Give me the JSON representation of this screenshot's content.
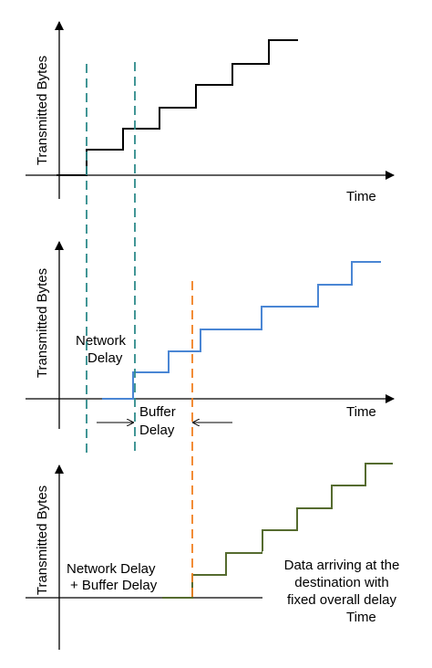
{
  "panels": [
    {
      "ylabel": "Transmitted Bytes",
      "xlabel": "Time",
      "step_color": "#000000"
    },
    {
      "ylabel": "Transmitted Bytes",
      "xlabel": "Time",
      "step_color": "#4a86d4",
      "annotations": {
        "network_delay_1": "Network",
        "network_delay_2": "Delay",
        "buffer_delay_1": "Buffer",
        "buffer_delay_2": "Delay"
      }
    },
    {
      "ylabel": "Transmitted Bytes",
      "xlabel": "Time",
      "step_color": "#556b2f",
      "annotations": {
        "sum_1": "Network Delay",
        "sum_2": "+ Buffer Delay",
        "arrive_1": "Data arriving at the",
        "arrive_2": "destination with",
        "arrive_3": "fixed overall delay"
      }
    }
  ],
  "colors": {
    "network_delay_line": "#2e8b8b",
    "total_delay_line": "#f08020",
    "axes": "#000000"
  }
}
